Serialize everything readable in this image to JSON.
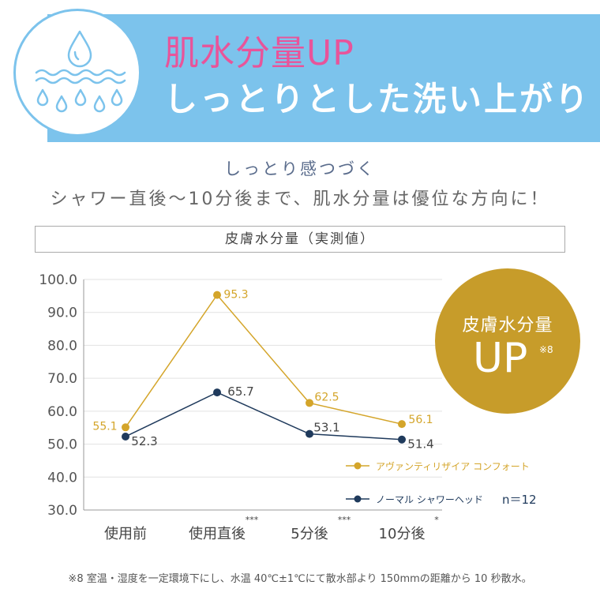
{
  "banner": {
    "headline": "肌水分量UP",
    "subheadline": "しっとりとした洗い上がり",
    "icon": "water-drops-icon"
  },
  "lead": {
    "line1": "しっとり感つづく",
    "line2": "シャワー直後〜10分後まで、肌水分量は優位な方向に！"
  },
  "badge": {
    "line1": "皮膚水分量",
    "line2": "UP",
    "note": "※8"
  },
  "footnote": "※8 室温・湿度を一定環境下にし、水温 40℃±1℃にて散水部より 150mmの距離から 10 秒散水。",
  "chart_data": {
    "type": "line",
    "title": "皮膚水分量（実測値）",
    "categories": [
      "使用前",
      "使用直後",
      "5分後",
      "10分後"
    ],
    "significance": [
      "",
      "***",
      "***",
      "*"
    ],
    "yticks": [
      "100.0",
      "90.0",
      "80.0",
      "70.0",
      "60.0",
      "50.0",
      "40.0",
      "30.0"
    ],
    "ylim": [
      30,
      100
    ],
    "series": [
      {
        "name": "アヴァンティリザイア コンフォート",
        "values": [
          55.1,
          95.3,
          62.5,
          56.1
        ],
        "labels": [
          "55.1",
          "95.3",
          "62.5",
          "56.1"
        ],
        "color": "#d4a52a"
      },
      {
        "name": "ノーマル シャワーヘッド",
        "values": [
          52.3,
          65.7,
          53.1,
          51.4
        ],
        "labels": [
          "52.3",
          "65.7",
          "53.1",
          "51.4"
        ],
        "color": "#1f3a5c"
      }
    ],
    "sample_size": "n＝12",
    "legend_position": "bottom-right"
  }
}
